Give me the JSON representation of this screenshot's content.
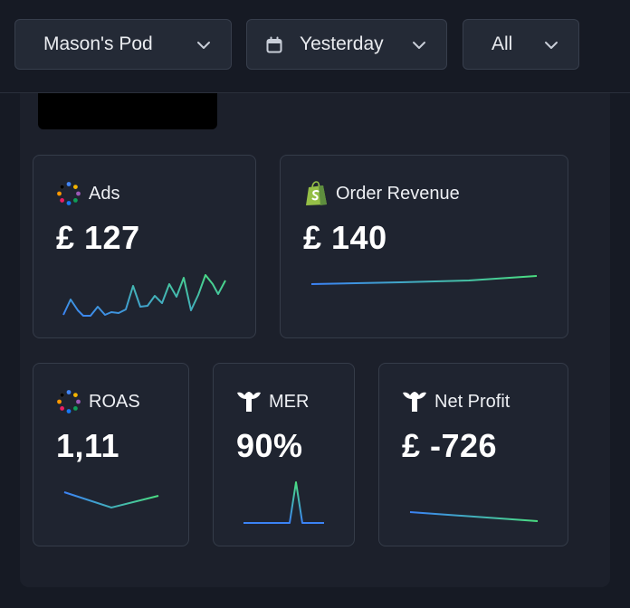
{
  "filters": {
    "pod": {
      "label": "Mason's Pod"
    },
    "date": {
      "label": "Yesterday"
    },
    "scope": {
      "label": "All"
    }
  },
  "cards": {
    "ads": {
      "title": "Ads",
      "value": "£ 127"
    },
    "order_revenue": {
      "title": "Order Revenue",
      "value": "£ 140"
    },
    "roas": {
      "title": "ROAS",
      "value": "1,11"
    },
    "mer": {
      "title": "MER",
      "value": "90%"
    },
    "net_profit": {
      "title": "Net Profit",
      "value": "£ -726"
    }
  },
  "colors": {
    "sparkline_start": "#3b82f6",
    "sparkline_end": "#4ade80",
    "shopify_green": "#95bf47"
  },
  "icons": {
    "dropdown": "chevron-down-icon",
    "date": "calendar-icon",
    "ads": "multi-dot-icon",
    "order_revenue": "shopify-bag-icon",
    "mer": "triple-whale-icon",
    "net_profit": "triple-whale-icon"
  }
}
